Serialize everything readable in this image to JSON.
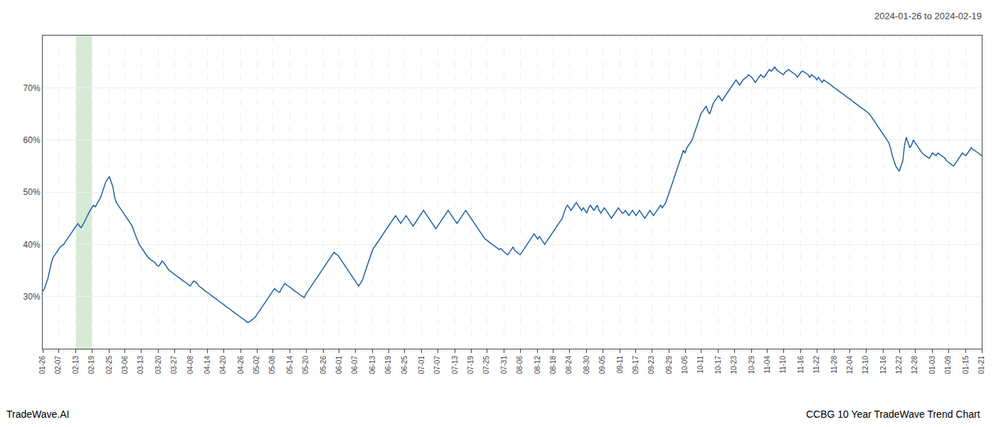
{
  "chart_data": {
    "type": "line",
    "title": "2024-01-26 to 2024-02-19",
    "annotations": [
      "TradeWave.AI",
      "CCBG 10 Year TradeWave Trend Chart"
    ],
    "color": "#2060a0",
    "grid": true,
    "shaded_range": {
      "start": "02-13",
      "end": "02-19",
      "color": "#d6ead6"
    },
    "ylim": [
      20,
      80
    ],
    "yticks": [
      {
        "value": 30,
        "label": "30%"
      },
      {
        "value": 40,
        "label": "40%"
      },
      {
        "value": 50,
        "label": "50%"
      },
      {
        "value": 60,
        "label": "60%"
      },
      {
        "value": 70,
        "label": "70%"
      }
    ],
    "categories": [
      "01-26",
      null,
      null,
      null,
      null,
      null,
      null,
      null,
      null,
      "02-07",
      null,
      null,
      null,
      null,
      null,
      null,
      null,
      null,
      null,
      "02-13",
      null,
      null,
      null,
      null,
      null,
      null,
      null,
      null,
      "02-19",
      null,
      null,
      null,
      null,
      null,
      null,
      null,
      null,
      null,
      "02-25",
      null,
      null,
      null,
      null,
      null,
      null,
      null,
      null,
      "03-06",
      null,
      null,
      null,
      null,
      null,
      null,
      null,
      null,
      "03-13",
      null,
      null,
      null,
      null,
      null,
      null,
      null,
      null,
      null,
      "03-20",
      null,
      null,
      null,
      null,
      null,
      null,
      null,
      null,
      "03-27",
      null,
      null,
      null,
      null,
      null,
      null,
      null,
      null,
      "04-08",
      null,
      null,
      null,
      null,
      null,
      null,
      null,
      null,
      null,
      "04-14",
      null,
      null,
      null,
      null,
      null,
      null,
      null,
      null,
      "04-20",
      null,
      null,
      null,
      null,
      null,
      null,
      null,
      null,
      null,
      "04-26",
      null,
      null,
      null,
      null,
      null,
      null,
      null,
      null,
      "05-02",
      null,
      null,
      null,
      null,
      null,
      null,
      null,
      null,
      "05-08",
      null,
      null,
      null,
      null,
      null,
      null,
      null,
      null,
      null,
      "05-14",
      null,
      null,
      null,
      null,
      null,
      null,
      null,
      null,
      "05-20",
      null,
      null,
      null,
      null,
      null,
      null,
      null,
      null,
      null,
      "05-26",
      null,
      null,
      null,
      null,
      null,
      null,
      null,
      null,
      "06-01",
      null,
      null,
      null,
      null,
      null,
      null,
      null,
      null,
      "06-07",
      null,
      null,
      null,
      null,
      null,
      null,
      null,
      null,
      null,
      "06-13",
      null,
      null,
      null,
      null,
      null,
      null,
      null,
      null,
      "06-19",
      null,
      null,
      null,
      null,
      null,
      null,
      null,
      null,
      "06-25",
      null,
      null,
      null,
      null,
      null,
      null,
      null,
      null,
      null,
      "07-01",
      null,
      null,
      null,
      null,
      null,
      null,
      null,
      null,
      "07-07",
      null,
      null,
      null,
      null,
      null,
      null,
      null,
      null,
      null,
      "07-13",
      null,
      null,
      null,
      null,
      null,
      null,
      null,
      null,
      "07-19",
      null,
      null,
      null,
      null,
      null,
      null,
      null,
      null,
      "07-25",
      null,
      null,
      null,
      null,
      null,
      null,
      null,
      null,
      null,
      "07-31",
      null,
      null,
      null,
      null,
      null,
      null,
      null,
      null,
      "08-06",
      null,
      null,
      null,
      null,
      null,
      null,
      null,
      null,
      null,
      "08-12",
      null,
      null,
      null,
      null,
      null,
      null,
      null,
      null,
      "08-18",
      null,
      null,
      null,
      null,
      null,
      null,
      null,
      null,
      "08-24",
      null,
      null,
      null,
      null,
      null,
      null,
      null,
      null,
      null,
      "08-30",
      null,
      null,
      null,
      null,
      null,
      null,
      null,
      null,
      "09-05",
      null,
      null,
      null,
      null,
      null,
      null,
      null,
      null,
      null,
      "09-11",
      null,
      null,
      null,
      null,
      null,
      null,
      null,
      null,
      "09-17",
      null,
      null,
      null,
      null,
      null,
      null,
      null,
      null,
      "09-23",
      null,
      null,
      null,
      null,
      null,
      null,
      null,
      null,
      null,
      "09-29",
      null,
      null,
      null,
      null,
      null,
      null,
      null,
      null,
      "10-05",
      null,
      null,
      null,
      null,
      null,
      null,
      null,
      null,
      "10-11",
      null,
      null,
      null,
      null,
      null,
      null,
      null,
      null,
      null,
      "10-17",
      null,
      null,
      null,
      null,
      null,
      null,
      null,
      null,
      "10-23",
      null,
      null,
      null,
      null,
      null,
      null,
      null,
      null,
      null,
      "10-29",
      null,
      null,
      null,
      null,
      null,
      null,
      null,
      null,
      "11-04",
      null,
      null,
      null,
      null,
      null,
      null,
      null,
      null,
      "11-10",
      null,
      null,
      null,
      null,
      null,
      null,
      null,
      null,
      null,
      "11-16",
      null,
      null,
      null,
      null,
      null,
      null,
      null,
      null,
      "11-22",
      null,
      null,
      null,
      null,
      null,
      null,
      null,
      null,
      null,
      "11-28",
      null,
      null,
      null,
      null,
      null,
      null,
      null,
      null,
      "12-04",
      null,
      null,
      null,
      null,
      null,
      null,
      null,
      null,
      "12-10",
      null,
      null,
      null,
      null,
      null,
      null,
      null,
      null,
      null,
      "12-16",
      null,
      null,
      null,
      null,
      null,
      null,
      null,
      null,
      "12-22",
      null,
      null,
      null,
      null,
      null,
      null,
      null,
      null,
      "12-28",
      null,
      null,
      null,
      null,
      null,
      null,
      null,
      null,
      null,
      "01-03",
      null,
      null,
      null,
      null,
      null,
      null,
      null,
      null,
      "01-09",
      null,
      null,
      null,
      null,
      null,
      null,
      null,
      null,
      null,
      "01-15",
      null,
      null,
      null,
      null,
      null,
      null,
      null,
      null,
      "01-21"
    ],
    "values": [
      31.0,
      31.5,
      32.5,
      33.5,
      35.0,
      36.5,
      37.5,
      38.0,
      38.5,
      39.0,
      39.5,
      39.8,
      40.0,
      40.5,
      41.0,
      41.5,
      42.0,
      42.5,
      43.0,
      43.5,
      44.0,
      43.5,
      43.2,
      43.8,
      44.5,
      45.0,
      45.8,
      46.5,
      47.0,
      47.5,
      47.2,
      47.8,
      48.2,
      49.0,
      50.0,
      51.0,
      52.0,
      52.5,
      53.0,
      52.0,
      51.0,
      49.0,
      48.0,
      47.5,
      47.0,
      46.5,
      46.0,
      45.5,
      45.0,
      44.5,
      44.0,
      43.5,
      42.5,
      41.5,
      40.8,
      40.0,
      39.5,
      39.0,
      38.5,
      38.0,
      37.5,
      37.2,
      37.0,
      36.8,
      36.5,
      36.0,
      35.8,
      36.2,
      36.8,
      36.5,
      36.0,
      35.5,
      35.0,
      34.8,
      34.5,
      34.2,
      34.0,
      33.8,
      33.5,
      33.2,
      33.0,
      32.8,
      32.5,
      32.2,
      32.0,
      32.5,
      33.0,
      32.8,
      32.5,
      32.0,
      31.8,
      31.5,
      31.2,
      31.0,
      30.8,
      30.5,
      30.2,
      30.0,
      29.8,
      29.5,
      29.2,
      29.0,
      28.8,
      28.5,
      28.2,
      28.0,
      27.8,
      27.5,
      27.2,
      27.0,
      26.8,
      26.5,
      26.2,
      26.0,
      25.8,
      25.5,
      25.2,
      25.0,
      25.2,
      25.5,
      25.8,
      26.0,
      26.5,
      27.0,
      27.5,
      28.0,
      28.5,
      29.0,
      29.5,
      30.0,
      30.5,
      31.0,
      31.5,
      31.2,
      31.0,
      30.8,
      31.5,
      32.0,
      32.5,
      32.2,
      32.0,
      31.8,
      31.5,
      31.2,
      31.0,
      30.8,
      30.5,
      30.2,
      30.0,
      29.8,
      30.5,
      31.0,
      31.5,
      32.0,
      32.5,
      33.0,
      33.5,
      34.0,
      34.5,
      35.0,
      35.5,
      36.0,
      36.5,
      37.0,
      37.5,
      38.0,
      38.5,
      38.2,
      38.0,
      37.5,
      37.0,
      36.5,
      36.0,
      35.5,
      35.0,
      34.5,
      34.0,
      33.5,
      33.0,
      32.5,
      32.0,
      32.5,
      33.0,
      34.0,
      35.0,
      36.0,
      37.0,
      38.0,
      39.0,
      39.5,
      40.0,
      40.5,
      41.0,
      41.5,
      42.0,
      42.5,
      43.0,
      43.5,
      44.0,
      44.5,
      45.0,
      45.5,
      45.0,
      44.5,
      44.0,
      44.5,
      45.0,
      45.5,
      45.0,
      44.5,
      44.0,
      43.5,
      44.0,
      44.5,
      45.0,
      45.5,
      46.0,
      46.5,
      46.0,
      45.5,
      45.0,
      44.5,
      44.0,
      43.5,
      43.0,
      43.5,
      44.0,
      44.5,
      45.0,
      45.5,
      46.0,
      46.5,
      46.0,
      45.5,
      45.0,
      44.5,
      44.0,
      44.5,
      45.0,
      45.5,
      46.0,
      46.5,
      46.0,
      45.5,
      45.0,
      44.5,
      44.0,
      43.5,
      43.0,
      42.5,
      42.0,
      41.5,
      41.0,
      40.8,
      40.5,
      40.2,
      40.0,
      39.8,
      39.5,
      39.2,
      39.0,
      39.2,
      38.8,
      38.5,
      38.2,
      38.0,
      38.5,
      39.0,
      39.5,
      38.8,
      38.5,
      38.2,
      38.0,
      38.5,
      39.0,
      39.5,
      40.0,
      40.5,
      41.0,
      41.5,
      42.0,
      41.5,
      41.0,
      41.5,
      41.0,
      40.5,
      40.0,
      40.5,
      41.0,
      41.5,
      42.0,
      42.5,
      43.0,
      43.5,
      44.0,
      44.5,
      45.0,
      46.0,
      47.0,
      47.5,
      47.0,
      46.5,
      47.0,
      47.5,
      48.0,
      47.5,
      47.0,
      46.5,
      47.0,
      46.5,
      46.0,
      47.0,
      47.5,
      47.0,
      46.5,
      47.0,
      47.5,
      46.5,
      46.0,
      46.5,
      47.0,
      46.5,
      46.0,
      45.5,
      45.0,
      45.5,
      46.0,
      46.5,
      47.0,
      46.5,
      46.0,
      46.0,
      46.5,
      46.0,
      45.5,
      46.0,
      46.5,
      46.0,
      45.5,
      46.0,
      46.5,
      46.0,
      45.5,
      45.0,
      45.5,
      46.0,
      46.5,
      46.0,
      45.5,
      46.0,
      46.5,
      47.0,
      47.5,
      47.0,
      47.5,
      48.0,
      49.0,
      50.0,
      51.0,
      52.0,
      53.0,
      54.0,
      55.0,
      56.0,
      57.0,
      58.0,
      57.5,
      58.5,
      59.0,
      59.5,
      60.0,
      61.0,
      62.0,
      63.0,
      64.0,
      65.0,
      65.5,
      66.0,
      66.5,
      65.5,
      65.0,
      66.0,
      67.0,
      67.5,
      68.0,
      68.5,
      68.0,
      67.5,
      68.0,
      68.5,
      69.0,
      69.5,
      70.0,
      70.5,
      71.0,
      71.5,
      71.0,
      70.5,
      71.0,
      71.5,
      71.8,
      72.0,
      72.5,
      72.2,
      72.0,
      71.5,
      71.0,
      71.5,
      72.0,
      72.5,
      72.2,
      72.0,
      72.5,
      73.0,
      73.5,
      73.2,
      73.5,
      74.0,
      73.5,
      73.2,
      73.0,
      72.8,
      72.5,
      73.0,
      73.2,
      73.5,
      73.2,
      73.0,
      72.8,
      72.5,
      72.0,
      72.5,
      73.0,
      73.2,
      73.0,
      72.8,
      72.5,
      72.0,
      72.5,
      72.2,
      72.0,
      71.5,
      72.0,
      71.5,
      71.0,
      71.5,
      71.2,
      71.0,
      70.8,
      70.5,
      70.2,
      70.0,
      69.8,
      69.5,
      69.2,
      69.0,
      68.8,
      68.5,
      68.2,
      68.0,
      67.8,
      67.5,
      67.2,
      67.0,
      66.8,
      66.5,
      66.2,
      66.0,
      65.8,
      65.5,
      65.2,
      65.0,
      64.5,
      64.0,
      63.5,
      63.0,
      62.5,
      62.0,
      61.5,
      61.0,
      60.5,
      60.0,
      59.5,
      58.5,
      57.0,
      56.0,
      55.0,
      54.5,
      54.0,
      55.0,
      56.0,
      59.0,
      60.5,
      59.5,
      58.5,
      59.0,
      60.0,
      59.5,
      59.0,
      58.5,
      58.0,
      57.5,
      57.2,
      57.0,
      56.8,
      56.5,
      57.0,
      57.5,
      57.2,
      57.0,
      57.5,
      57.2,
      57.0,
      56.8,
      56.5,
      56.0,
      55.8,
      55.5,
      55.2,
      55.0,
      55.5,
      56.0,
      56.5,
      57.0,
      57.5,
      57.2,
      57.0,
      57.5,
      58.0,
      58.5,
      58.2,
      58.0,
      57.8,
      57.5,
      57.2,
      57.0
    ]
  }
}
